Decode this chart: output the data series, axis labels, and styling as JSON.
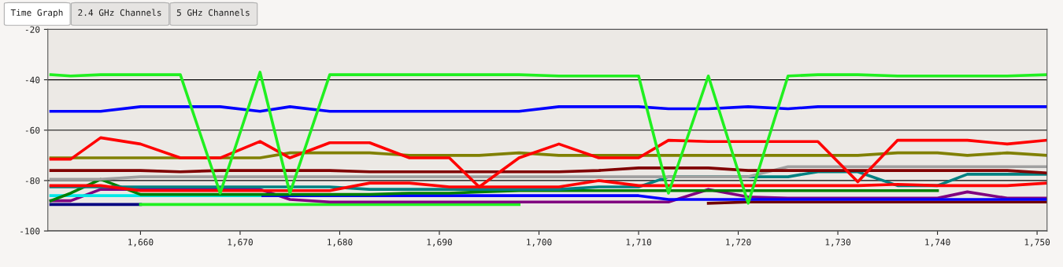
{
  "chart_data": {
    "type": "line",
    "annotations": [
      "Time Graph",
      "2.4 GHz Channels",
      "5 GHz Channels"
    ],
    "x": [
      1651,
      1653,
      1656,
      1660,
      1664,
      1668,
      1672,
      1675,
      1679,
      1683,
      1687,
      1691,
      1694,
      1698,
      1702,
      1706,
      1710,
      1713,
      1717,
      1721,
      1725,
      1728,
      1732,
      1736,
      1740,
      1743,
      1747,
      1751
    ],
    "xlim": [
      1650.7,
      1751
    ],
    "ylim": [
      -100,
      -20
    ],
    "xticks": [
      {
        "value": 1660,
        "label": "1,660"
      },
      {
        "value": 1670,
        "label": "1,670"
      },
      {
        "value": 1680,
        "label": "1,680"
      },
      {
        "value": 1690,
        "label": "1,690"
      },
      {
        "value": 1700,
        "label": "1,700"
      },
      {
        "value": 1710,
        "label": "1,710"
      },
      {
        "value": 1720,
        "label": "1,720"
      },
      {
        "value": 1730,
        "label": "1,730"
      },
      {
        "value": 1740,
        "label": "1,740"
      },
      {
        "value": 1750,
        "label": "1,750"
      }
    ],
    "yticks": [
      -100,
      -80,
      -60,
      -40,
      -20
    ],
    "grid": "y",
    "marker": "none",
    "line_style": "solid",
    "series": [
      {
        "color": "#000080",
        "values": [
          -89.5,
          -89.5,
          -89.5,
          -89.5,
          null,
          null,
          null,
          null,
          null,
          null,
          null,
          null,
          null,
          null,
          null,
          null,
          null,
          null,
          null,
          null,
          null,
          null,
          null,
          null,
          null,
          null,
          null,
          null
        ]
      },
      {
        "color": "#20f020",
        "values": [
          null,
          null,
          null,
          -89.5,
          -89.5,
          -89.5,
          -89.5,
          -89.5,
          -89.5,
          -89.5,
          -89.5,
          -89.5,
          -89.5,
          -89.5,
          null,
          null,
          null,
          null,
          null,
          null,
          null,
          null,
          null,
          null,
          null,
          null,
          null,
          null
        ]
      },
      {
        "color": "#700000",
        "values": [
          null,
          null,
          null,
          null,
          null,
          null,
          null,
          null,
          null,
          null,
          null,
          null,
          null,
          null,
          null,
          null,
          null,
          null,
          -89,
          -88.5,
          -88.5,
          -88.5,
          -88.5,
          -88.5,
          -88.5,
          -88.5,
          -88.5,
          -88.5
        ]
      },
      {
        "color": "#800080",
        "values": [
          -88,
          -88,
          -83.5,
          -83.5,
          -83.5,
          -83.5,
          -83.5,
          -87.5,
          -88.5,
          -88.5,
          -88.5,
          -88.5,
          -88.5,
          -88.5,
          -88.5,
          -88.5,
          -88.5,
          -88.5,
          -83.5,
          -86.5,
          -87,
          -87,
          -87,
          -87,
          -87,
          -84.5,
          -87,
          -87
        ]
      },
      {
        "color": "#0000ff",
        "values": [
          null,
          null,
          null,
          null,
          null,
          null,
          -86,
          -86,
          -86,
          -86,
          -86,
          -86,
          -86,
          -86,
          -86,
          -86,
          -86,
          -87.5,
          -87.5,
          -87.5,
          -87.5,
          -87.5,
          -87.5,
          -87.5,
          -87.5,
          -87.5,
          -87.5,
          -87.5
        ]
      },
      {
        "color": "#00e8e8",
        "values": [
          -86,
          -86,
          -86,
          -86,
          -86,
          -86,
          -86,
          null,
          null,
          null,
          null,
          null,
          null,
          null,
          null,
          null,
          null,
          null,
          null,
          null,
          null,
          null,
          null,
          null,
          null,
          null,
          null,
          null
        ]
      },
      {
        "color": "#008000",
        "values": [
          -88,
          -85,
          -79.5,
          -85.5,
          -85.5,
          -85.5,
          -85.5,
          -85.5,
          -85.5,
          -85.5,
          -85,
          -85,
          -84.5,
          -84,
          -84,
          -84,
          -84,
          -84,
          -84,
          -84,
          -84,
          -84,
          -84,
          -84,
          -84,
          null,
          null,
          null
        ]
      },
      {
        "color": "#008080",
        "values": [
          -82.5,
          -82.5,
          -82.5,
          -82.5,
          -82.5,
          -82.5,
          -82.5,
          -82.5,
          -82.5,
          -83.5,
          -83.5,
          -83.5,
          -83.5,
          -83.5,
          -83.5,
          -82.5,
          -82.5,
          -78.5,
          -78.5,
          -78.5,
          -78.5,
          -76.5,
          -76.5,
          -82,
          -82,
          -77.5,
          -77.5,
          -77.5
        ]
      },
      {
        "color": "#ff0000",
        "values": [
          -82,
          -82,
          -82,
          -84,
          -84,
          -84,
          -84,
          -84,
          -84,
          -81,
          -81,
          -82.5,
          -82.5,
          -82.5,
          -82.5,
          -80,
          -82,
          -82,
          -82,
          -82,
          -82,
          -82,
          -82,
          -81.5,
          -82,
          -82,
          -82,
          -81
        ]
      },
      {
        "color": "#a0a0a0",
        "values": [
          -79.5,
          -79.5,
          -79.5,
          -78.5,
          -78.5,
          -78.5,
          -78.5,
          -78.5,
          -78.5,
          -78.5,
          -78.5,
          -78.5,
          -78.5,
          -78.5,
          -78.5,
          -78.5,
          -78.5,
          -78.5,
          -78.5,
          -78.5,
          -74.5,
          -74.5,
          -74.5,
          -74.5,
          -74.5,
          -74.5,
          -74.5,
          -74.5
        ]
      },
      {
        "color": "#800000",
        "values": [
          -76,
          -76,
          -76,
          -76,
          -76.5,
          -76,
          -76,
          -76,
          -76,
          -76.5,
          -76.5,
          -76.5,
          -76.5,
          -76.5,
          -76.5,
          -76,
          -75,
          -75,
          -75,
          -76,
          -76,
          -76,
          -76,
          -76,
          -76,
          -76,
          -76,
          -77
        ]
      },
      {
        "color": "#808000",
        "values": [
          -71,
          -71,
          -71,
          -71,
          -71,
          -71,
          -71,
          -69,
          -69,
          -69,
          -70,
          -70,
          -70,
          -69,
          -70,
          -70,
          -70,
          -70,
          -70,
          -70,
          -70,
          -70,
          -70,
          -69,
          -69,
          -70,
          -69,
          -70
        ]
      },
      {
        "color": "#ff0000",
        "values": [
          -71.5,
          -71.5,
          -63,
          -65.5,
          -71,
          -71,
          -64.5,
          -71,
          -65,
          -65,
          -71,
          -71,
          -82.5,
          -71,
          -65.5,
          -71,
          -71,
          -64,
          -64.5,
          -64.5,
          -64.5,
          -64.5,
          -80.5,
          -64,
          -64,
          -64,
          -65.5,
          -64
        ]
      },
      {
        "color": "#0000ff",
        "values": [
          -52.5,
          -52.5,
          -52.5,
          -50.7,
          -50.7,
          -50.7,
          -52.5,
          -50.7,
          -52.5,
          -52.5,
          -52.5,
          -52.5,
          -52.5,
          -52.5,
          -50.7,
          -50.7,
          -50.7,
          -51.5,
          -51.5,
          -50.7,
          -51.5,
          -50.7,
          -50.7,
          -50.7,
          -50.7,
          -50.7,
          -50.7,
          -50.7
        ]
      },
      {
        "color": "#20f020",
        "values": [
          -38,
          -38.5,
          -38,
          -38,
          -38,
          -85,
          -37,
          -85,
          -38,
          -38,
          -38,
          -38,
          -38,
          -38,
          -38.5,
          -38.5,
          -38.5,
          -85,
          -38.5,
          -89,
          -38.5,
          -38,
          -38,
          -38.5,
          -38.5,
          -38.5,
          -38.5,
          -38
        ]
      }
    ]
  }
}
